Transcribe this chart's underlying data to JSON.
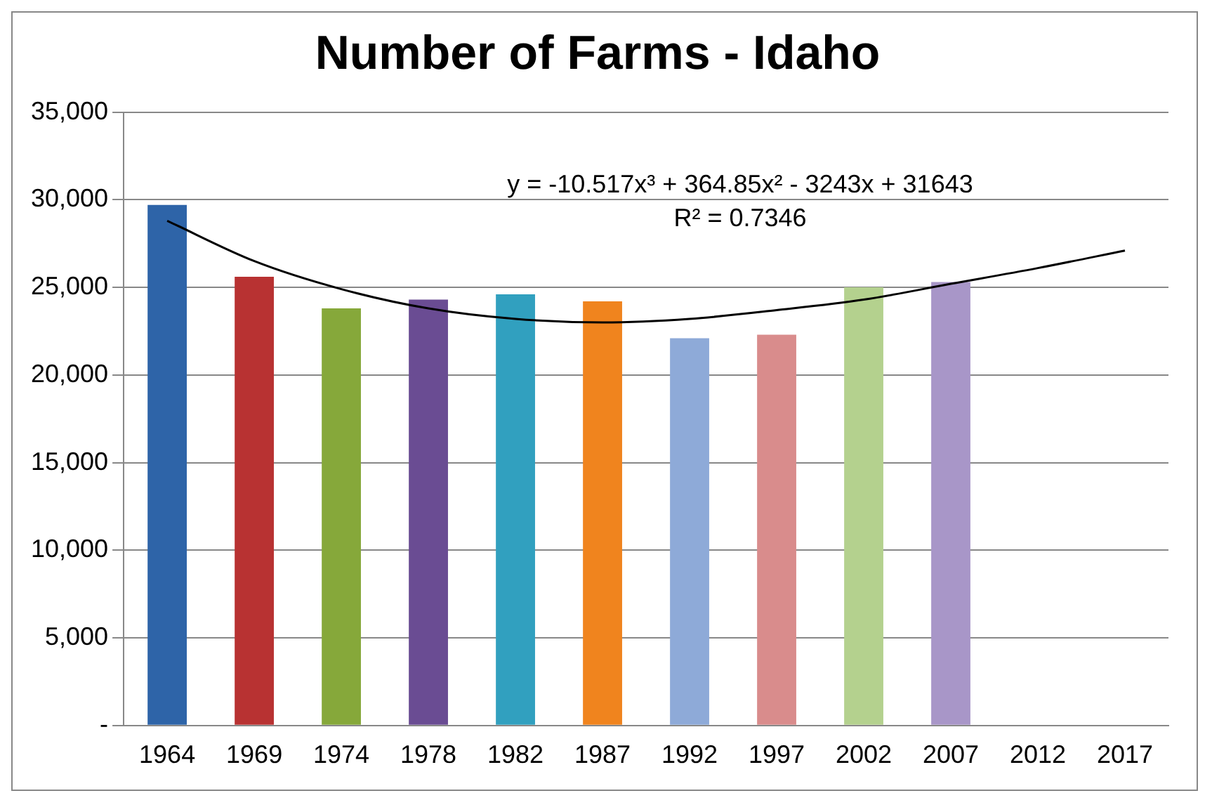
{
  "chart_data": {
    "type": "bar",
    "title": "Number of Farms - Idaho",
    "categories": [
      "1964",
      "1969",
      "1974",
      "1978",
      "1982",
      "1987",
      "1992",
      "1997",
      "2002",
      "2007",
      "2012",
      "2017"
    ],
    "series": [
      {
        "colors": [
          "#2e64a8",
          "#b83232",
          "#86a83a",
          "#6a4c93",
          "#31a0bf",
          "#f0841e",
          "#8eaad8",
          "#d98c8c",
          "#b4d18e",
          "#a896c8",
          null,
          null
        ],
        "values": [
          29700,
          25600,
          23800,
          24300,
          24600,
          24200,
          22100,
          22300,
          25000,
          25300,
          null,
          null
        ]
      },
      {
        "type": "line",
        "color": "#000000",
        "values": [
          28800,
          26500,
          24900,
          23800,
          23200,
          23000,
          23200,
          23700,
          24300,
          25200,
          26100,
          27100
        ]
      }
    ],
    "ylim": [
      0,
      35000
    ],
    "yticks": [
      {
        "value": 0,
        "label": "-"
      },
      {
        "value": 5000,
        "label": "5,000"
      },
      {
        "value": 10000,
        "label": "10,000"
      },
      {
        "value": 15000,
        "label": "15,000"
      },
      {
        "value": 20000,
        "label": "20,000"
      },
      {
        "value": 25000,
        "label": "25,000"
      },
      {
        "value": 30000,
        "label": "30,000"
      },
      {
        "value": 35000,
        "label": "35,000"
      }
    ],
    "grid": "y",
    "legend": false,
    "marker": "none",
    "annotations": [
      "y = -10.517x³ + 364.85x² - 3243x + 31643",
      "R² = 0.7346"
    ]
  }
}
